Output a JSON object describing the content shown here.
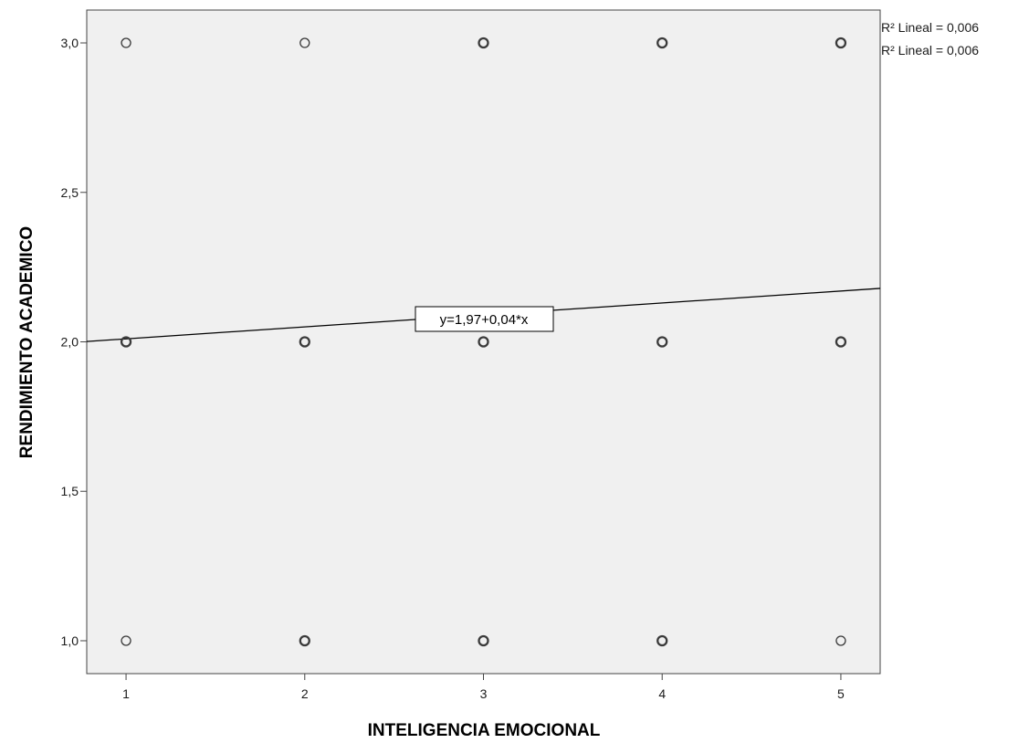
{
  "chart_data": {
    "type": "scatter",
    "xlabel": "INTELIGENCIA EMOCIONAL",
    "ylabel": "RENDIMIENTO ACADEMICO",
    "x_ticks": [
      "1",
      "2",
      "3",
      "4",
      "5"
    ],
    "y_ticks": [
      "1,0",
      "1,5",
      "2,0",
      "2,5",
      "3,0"
    ],
    "xlim": [
      0.78,
      5.22
    ],
    "ylim": [
      0.89,
      3.11
    ],
    "points": [
      {
        "x": 1,
        "y": 3.0,
        "bold": false
      },
      {
        "x": 2,
        "y": 3.0,
        "bold": false
      },
      {
        "x": 3,
        "y": 3.0,
        "bold": true
      },
      {
        "x": 4,
        "y": 3.0,
        "bold": true
      },
      {
        "x": 5,
        "y": 3.0,
        "bold": true
      },
      {
        "x": 1,
        "y": 2.0,
        "bold": true
      },
      {
        "x": 2,
        "y": 2.0,
        "bold": true
      },
      {
        "x": 3,
        "y": 2.0,
        "bold": true
      },
      {
        "x": 4,
        "y": 2.0,
        "bold": true
      },
      {
        "x": 5,
        "y": 2.0,
        "bold": true
      },
      {
        "x": 1,
        "y": 1.0,
        "bold": false
      },
      {
        "x": 2,
        "y": 1.0,
        "bold": true
      },
      {
        "x": 3,
        "y": 1.0,
        "bold": true
      },
      {
        "x": 4,
        "y": 1.0,
        "bold": true
      },
      {
        "x": 5,
        "y": 1.0,
        "bold": false
      }
    ],
    "fit_line": {
      "intercept": 1.97,
      "slope": 0.04,
      "label": "y=1,97+0,04*x"
    },
    "legend": [
      "R² Lineal = 0,006",
      "R² Lineal = 0,006"
    ],
    "legend_placement": "top-right",
    "grid": false,
    "colors": {
      "plot_bg": "#f0f0f0",
      "marker": "#3a3a3a",
      "line": "#000000"
    }
  }
}
